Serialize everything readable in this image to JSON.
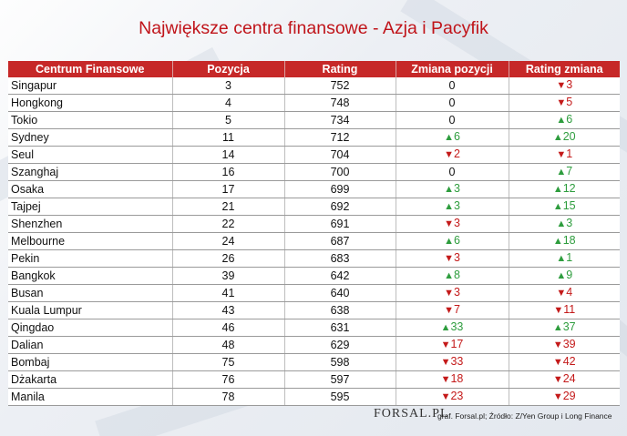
{
  "title": "Największe centra finansowe - Azja i Pacyfik",
  "columns": [
    "Centrum Finansowe",
    "Pozycja",
    "Rating",
    "Zmiana pozycji",
    "Rating zmiana"
  ],
  "rows": [
    {
      "city": "Singapur",
      "pos": "3",
      "rating": "752",
      "pos_change": "0",
      "pos_dir": "none",
      "rating_change": "3",
      "rating_dir": "down"
    },
    {
      "city": "Hongkong",
      "pos": "4",
      "rating": "748",
      "pos_change": "0",
      "pos_dir": "none",
      "rating_change": "5",
      "rating_dir": "down"
    },
    {
      "city": "Tokio",
      "pos": "5",
      "rating": "734",
      "pos_change": "0",
      "pos_dir": "none",
      "rating_change": "6",
      "rating_dir": "up"
    },
    {
      "city": "Sydney",
      "pos": "11",
      "rating": "712",
      "pos_change": "6",
      "pos_dir": "up",
      "rating_change": "20",
      "rating_dir": "up"
    },
    {
      "city": "Seul",
      "pos": "14",
      "rating": "704",
      "pos_change": "2",
      "pos_dir": "down",
      "rating_change": "1",
      "rating_dir": "down"
    },
    {
      "city": "Szanghaj",
      "pos": "16",
      "rating": "700",
      "pos_change": "0",
      "pos_dir": "none",
      "rating_change": "7",
      "rating_dir": "up"
    },
    {
      "city": "Osaka",
      "pos": "17",
      "rating": "699",
      "pos_change": "3",
      "pos_dir": "up",
      "rating_change": "12",
      "rating_dir": "up"
    },
    {
      "city": "Tajpej",
      "pos": "21",
      "rating": "692",
      "pos_change": "3",
      "pos_dir": "up",
      "rating_change": "15",
      "rating_dir": "up"
    },
    {
      "city": "Shenzhen",
      "pos": "22",
      "rating": "691",
      "pos_change": "3",
      "pos_dir": "down",
      "rating_change": "3",
      "rating_dir": "up"
    },
    {
      "city": "Melbourne",
      "pos": "24",
      "rating": "687",
      "pos_change": "6",
      "pos_dir": "up",
      "rating_change": "18",
      "rating_dir": "up"
    },
    {
      "city": "Pekin",
      "pos": "26",
      "rating": "683",
      "pos_change": "3",
      "pos_dir": "down",
      "rating_change": "1",
      "rating_dir": "up"
    },
    {
      "city": "Bangkok",
      "pos": "39",
      "rating": "642",
      "pos_change": "8",
      "pos_dir": "up",
      "rating_change": "9",
      "rating_dir": "up"
    },
    {
      "city": "Busan",
      "pos": "41",
      "rating": "640",
      "pos_change": "3",
      "pos_dir": "down",
      "rating_change": "4",
      "rating_dir": "down"
    },
    {
      "city": "Kuala Lumpur",
      "pos": "43",
      "rating": "638",
      "pos_change": "7",
      "pos_dir": "down",
      "rating_change": "11",
      "rating_dir": "down"
    },
    {
      "city": "Qingdao",
      "pos": "46",
      "rating": "631",
      "pos_change": "33",
      "pos_dir": "up",
      "rating_change": "37",
      "rating_dir": "up"
    },
    {
      "city": "Dalian",
      "pos": "48",
      "rating": "629",
      "pos_change": "17",
      "pos_dir": "down",
      "rating_change": "39",
      "rating_dir": "down"
    },
    {
      "city": "Bombaj",
      "pos": "75",
      "rating": "598",
      "pos_change": "33",
      "pos_dir": "down",
      "rating_change": "42",
      "rating_dir": "down"
    },
    {
      "city": "Dżakarta",
      "pos": "76",
      "rating": "597",
      "pos_change": "18",
      "pos_dir": "down",
      "rating_change": "24",
      "rating_dir": "down"
    },
    {
      "city": "Manila",
      "pos": "78",
      "rating": "595",
      "pos_change": "23",
      "pos_dir": "down",
      "rating_change": "29",
      "rating_dir": "down"
    }
  ],
  "colors": {
    "header_bg": "#c62828",
    "up": "#2e9d3e",
    "down": "#c41a1a",
    "title": "#c0141a"
  },
  "logo": "FORSAL.PL",
  "footer": "graf. Forsal.pl; Źródło: Z/Yen Group i Long Finance"
}
